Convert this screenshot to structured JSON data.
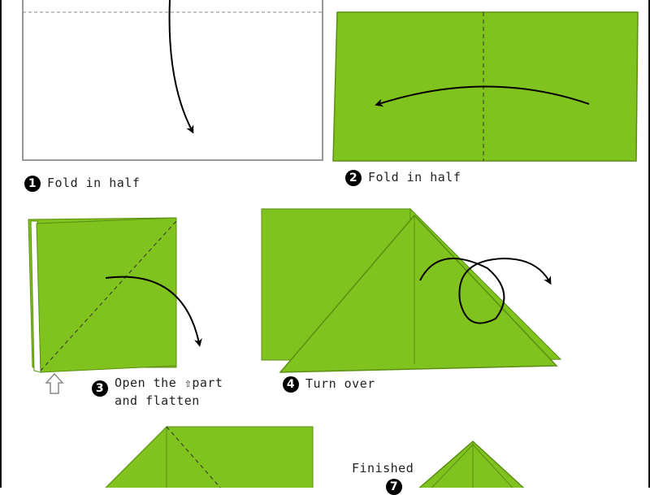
{
  "colors": {
    "paper": "#80c21e",
    "paper_edge": "#5a8f12",
    "outline": "#888888",
    "arrow": "#000000"
  },
  "steps": [
    {
      "number": "1",
      "label": "Fold in half"
    },
    {
      "number": "2",
      "label": "Fold in half"
    },
    {
      "number": "3",
      "label_line1": "Open the",
      "label_icon": "⇧",
      "label_after_icon": "part",
      "label_line2": "and flatten"
    },
    {
      "number": "4",
      "label": "Turn over"
    },
    {
      "number": "7",
      "label": "Finished"
    }
  ]
}
